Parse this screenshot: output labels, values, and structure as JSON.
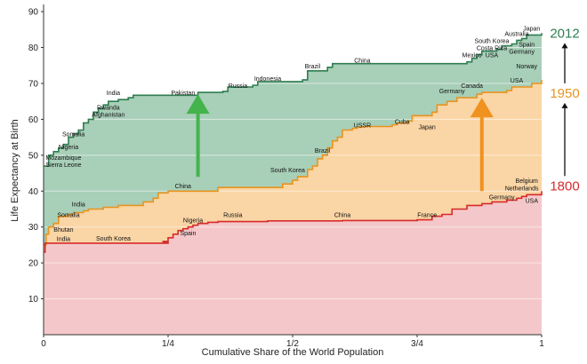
{
  "chart_data": {
    "type": "area",
    "xlabel": "Cumulative Share of the World Population",
    "ylabel": "Life Expectancy at Birth",
    "xlim": [
      0,
      1
    ],
    "ylim": [
      0,
      92
    ],
    "grid": true,
    "x_ticks": [
      {
        "value": 0,
        "label": "0"
      },
      {
        "value": 0.25,
        "label": "1/4"
      },
      {
        "value": 0.5,
        "label": "1/2"
      },
      {
        "value": 0.75,
        "label": "3/4"
      },
      {
        "value": 1,
        "label": "1"
      }
    ],
    "y_ticks": [
      10,
      20,
      30,
      40,
      50,
      60,
      70,
      80,
      90
    ],
    "series": [
      {
        "name": "2012",
        "color": "#2e7d4f",
        "fill": "#a8cfb8",
        "x": [
          0,
          0.01,
          0.02,
          0.03,
          0.04,
          0.05,
          0.06,
          0.07,
          0.08,
          0.09,
          0.1,
          0.11,
          0.12,
          0.13,
          0.14,
          0.15,
          0.17,
          0.18,
          0.3,
          0.31,
          0.36,
          0.37,
          0.42,
          0.43,
          0.52,
          0.53,
          0.57,
          0.58,
          0.85,
          0.86,
          0.87,
          0.88,
          0.91,
          0.92,
          0.94,
          0.95,
          0.96,
          0.97,
          1
        ],
        "values": [
          47,
          50,
          51,
          52,
          53,
          55,
          56,
          57,
          59,
          60,
          62,
          63,
          64,
          65,
          65,
          65.5,
          66,
          66.7,
          66.7,
          67.5,
          67.8,
          69,
          69.5,
          70.5,
          71,
          73.5,
          74.5,
          75.5,
          76,
          77,
          78,
          79,
          79.5,
          80.5,
          81,
          82,
          82.5,
          83.5,
          84
        ]
      },
      {
        "name": "1950",
        "color": "#e8941e",
        "fill": "#fad5a5",
        "x": [
          0,
          0.005,
          0.01,
          0.02,
          0.03,
          0.05,
          0.06,
          0.08,
          0.09,
          0.1,
          0.12,
          0.15,
          0.2,
          0.22,
          0.23,
          0.25,
          0.35,
          0.48,
          0.5,
          0.51,
          0.53,
          0.54,
          0.55,
          0.56,
          0.57,
          0.58,
          0.59,
          0.6,
          0.62,
          0.63,
          0.64,
          0.65,
          0.7,
          0.71,
          0.73,
          0.74,
          0.78,
          0.79,
          0.81,
          0.83,
          0.87,
          0.88,
          0.93,
          0.94,
          0.98,
          1
        ],
        "values": [
          25,
          28,
          30,
          31,
          33,
          33.5,
          34,
          34.5,
          35,
          35,
          35.5,
          36,
          37,
          38,
          39.5,
          40,
          41,
          42,
          43,
          44,
          46,
          47,
          49,
          50,
          52,
          54,
          55,
          57,
          57.5,
          57.8,
          58,
          58,
          58.5,
          59,
          59.5,
          61,
          62,
          64,
          65,
          66,
          67,
          67.5,
          68,
          69,
          70,
          71
        ]
      },
      {
        "name": "1800",
        "color": "#d62b2b",
        "fill": "#f4c8ca",
        "x": [
          0,
          0.003,
          0.01,
          0.25,
          0.24,
          0.25,
          0.26,
          0.27,
          0.28,
          0.29,
          0.3,
          0.31,
          0.33,
          0.35,
          0.45,
          0.6,
          0.75,
          0.78,
          0.8,
          0.82,
          0.85,
          0.88,
          0.9,
          0.93,
          0.95,
          0.96,
          0.97,
          1
        ],
        "values": [
          23,
          25.5,
          25.5,
          25.8,
          26,
          27,
          28,
          29,
          29.5,
          30,
          30.5,
          31,
          31.3,
          31.5,
          31.7,
          31.8,
          32,
          33,
          33.5,
          35,
          36,
          36.5,
          37,
          37.5,
          38,
          38.5,
          39,
          40
        ]
      }
    ],
    "annotations": [
      {
        "text": "India",
        "x": 0.14,
        "y": 66.5,
        "series": "2012"
      },
      {
        "text": "Pakistan",
        "x": 0.28,
        "y": 66.5,
        "series": "2012"
      },
      {
        "text": "Russia",
        "x": 0.39,
        "y": 68.5,
        "series": "2012"
      },
      {
        "text": "Indonesia",
        "x": 0.45,
        "y": 70.5,
        "series": "2012"
      },
      {
        "text": "Brazil",
        "x": 0.54,
        "y": 74,
        "series": "2012"
      },
      {
        "text": "China",
        "x": 0.64,
        "y": 75.5,
        "series": "2012"
      },
      {
        "text": "Mexico",
        "x": 0.86,
        "y": 77,
        "series": "2012"
      },
      {
        "text": "USA",
        "x": 0.9,
        "y": 77,
        "series": "2012"
      },
      {
        "text": "Costa Rica",
        "x": 0.9,
        "y": 79,
        "series": "2012"
      },
      {
        "text": "South Korea",
        "x": 0.9,
        "y": 81,
        "series": "2012"
      },
      {
        "text": "Germany",
        "x": 0.96,
        "y": 78,
        "series": "2012"
      },
      {
        "text": "Spain",
        "x": 0.97,
        "y": 80,
        "series": "2012"
      },
      {
        "text": "Australia",
        "x": 0.95,
        "y": 83,
        "series": "2012"
      },
      {
        "text": "Japan",
        "x": 0.98,
        "y": 84.5,
        "series": "2012"
      },
      {
        "text": "Rwanda",
        "x": 0.13,
        "y": 62.5,
        "series": "2012"
      },
      {
        "text": "Afghanistan",
        "x": 0.13,
        "y": 60.5,
        "series": "2012"
      },
      {
        "text": "Somalia",
        "x": 0.06,
        "y": 55,
        "series": "2012"
      },
      {
        "text": "Nigeria",
        "x": 0.05,
        "y": 51.5,
        "series": "2012"
      },
      {
        "text": "Mozambique",
        "x": 0.04,
        "y": 48.5,
        "series": "2012"
      },
      {
        "text": "Sierra Leone",
        "x": 0.04,
        "y": 46.5,
        "series": "2012"
      },
      {
        "text": "Norway",
        "x": 0.97,
        "y": 74,
        "series": "1950"
      },
      {
        "text": "USA",
        "x": 0.95,
        "y": 70,
        "series": "1950"
      },
      {
        "text": "Canada",
        "x": 0.86,
        "y": 68.5,
        "series": "1950"
      },
      {
        "text": "Germany",
        "x": 0.82,
        "y": 67,
        "series": "1950"
      },
      {
        "text": "Cuba",
        "x": 0.72,
        "y": 58.5,
        "series": "1950"
      },
      {
        "text": "Japan",
        "x": 0.77,
        "y": 57,
        "series": "1950"
      },
      {
        "text": "USSR",
        "x": 0.64,
        "y": 57.5,
        "series": "1950"
      },
      {
        "text": "Brazil",
        "x": 0.56,
        "y": 50.5,
        "series": "1950"
      },
      {
        "text": "South Korea",
        "x": 0.49,
        "y": 45,
        "series": "1950"
      },
      {
        "text": "China",
        "x": 0.28,
        "y": 40.5,
        "series": "1950"
      },
      {
        "text": "India",
        "x": 0.07,
        "y": 35.5,
        "series": "1950"
      },
      {
        "text": "Somalia",
        "x": 0.05,
        "y": 32.5,
        "series": "1950"
      },
      {
        "text": "Bhutan",
        "x": 0.04,
        "y": 28.5,
        "series": "1950"
      },
      {
        "text": "India",
        "x": 0.04,
        "y": 25.8,
        "series": "1800"
      },
      {
        "text": "South Korea",
        "x": 0.14,
        "y": 26,
        "series": "1800"
      },
      {
        "text": "Nigeria",
        "x": 0.3,
        "y": 31,
        "series": "1800"
      },
      {
        "text": "Spain",
        "x": 0.29,
        "y": 27.5,
        "series": "1800"
      },
      {
        "text": "Russia",
        "x": 0.38,
        "y": 32.5,
        "series": "1800"
      },
      {
        "text": "China",
        "x": 0.6,
        "y": 32.5,
        "series": "1800"
      },
      {
        "text": "France",
        "x": 0.77,
        "y": 32.5,
        "series": "1800"
      },
      {
        "text": "Germany",
        "x": 0.92,
        "y": 37.5,
        "series": "1800"
      },
      {
        "text": "Netherlands",
        "x": 0.96,
        "y": 40,
        "series": "1800"
      },
      {
        "text": "USA",
        "x": 0.98,
        "y": 36.5,
        "series": "1800"
      },
      {
        "text": "Belgium",
        "x": 0.97,
        "y": 42,
        "series": "1800"
      }
    ],
    "year_labels": [
      {
        "text": "2012",
        "color": "#2e7d4f"
      },
      {
        "text": "1950",
        "color": "#e8941e"
      },
      {
        "text": "1800",
        "color": "#d62b2b"
      }
    ],
    "arrows": [
      {
        "color": "#44b34c",
        "x": 0.31,
        "from": 44,
        "to": 67
      },
      {
        "color": "#f0921f",
        "x": 0.88,
        "from": 40,
        "to": 66
      }
    ]
  }
}
